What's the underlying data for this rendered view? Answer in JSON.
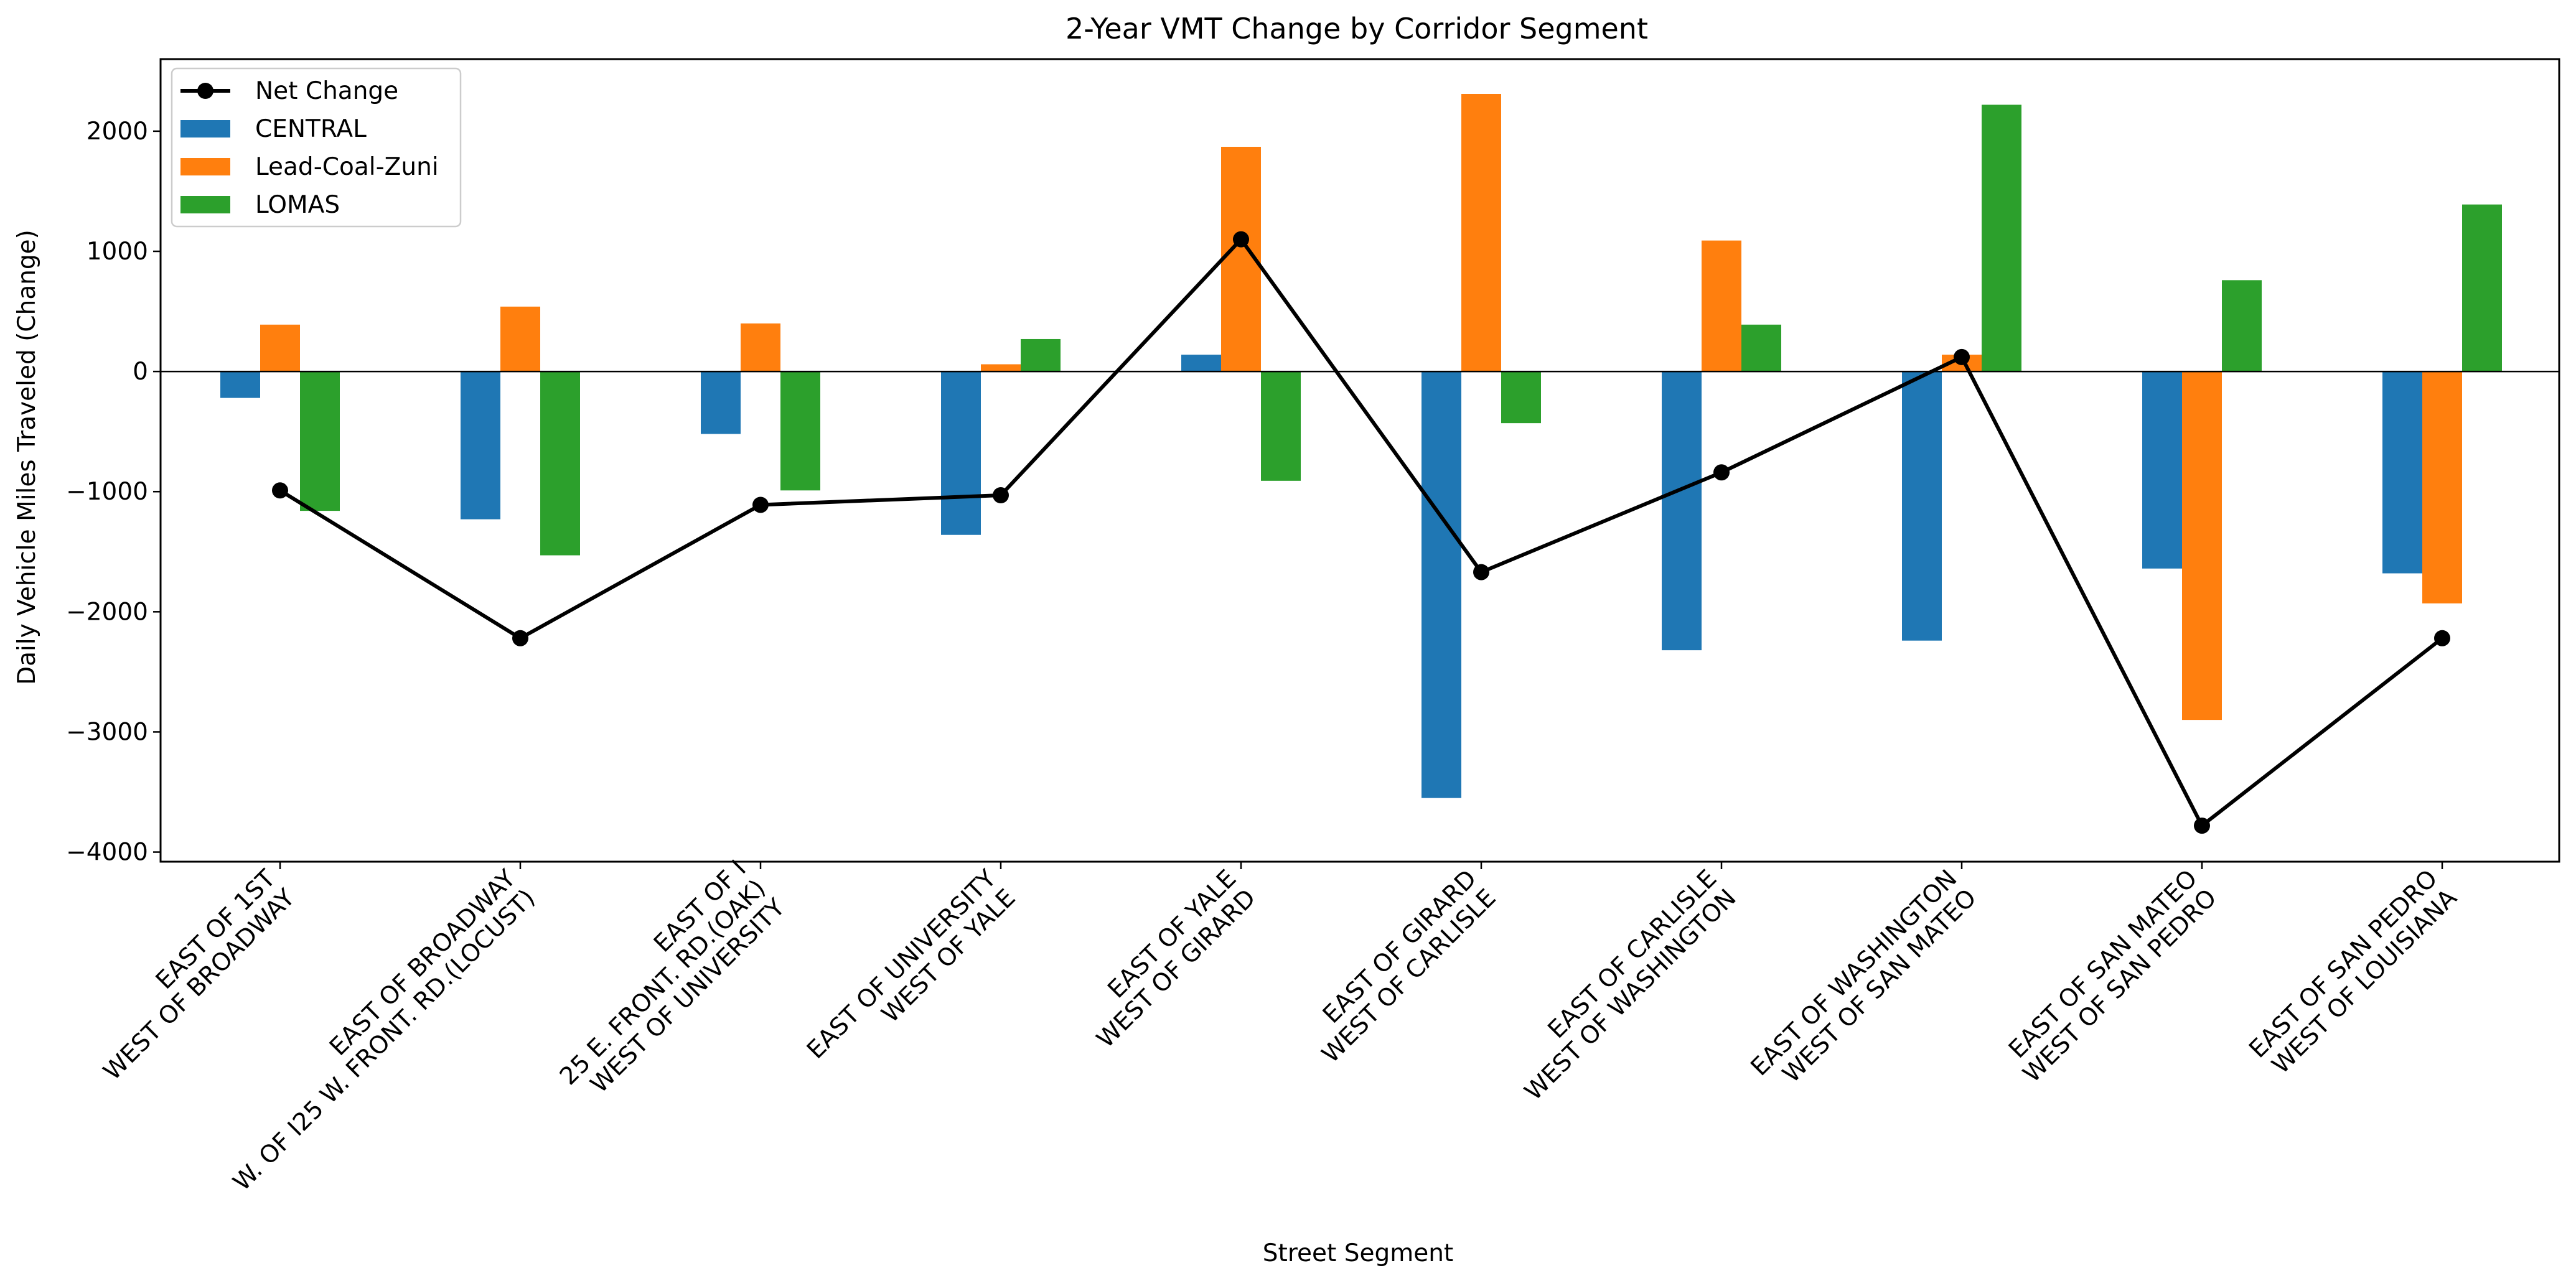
{
  "chart_data": {
    "type": "bar",
    "title": "2-Year VMT Change by Corridor Segment",
    "xlabel": "Street Segment",
    "ylabel": "Daily Vehicle Miles Traveled (Change)",
    "ylim": [
      -4080,
      2600
    ],
    "yticks": [
      -4000,
      -3000,
      -2000,
      -1000,
      0,
      1000,
      2000
    ],
    "ytick_labels": [
      "−4000",
      "−3000",
      "−2000",
      "−1000",
      "0",
      "1000",
      "2000"
    ],
    "legend_position": "top-left",
    "categories": [
      [
        "EAST OF 1ST",
        "WEST OF BROADWAY"
      ],
      [
        "EAST OF BROADWAY",
        "W. OF I25 W. FRONT. RD.(LOCUST)"
      ],
      [
        "EAST OF I",
        "25 E. FRONT. RD.(OAK)",
        "WEST OF UNIVERSITY"
      ],
      [
        "EAST OF UNIVERSITY",
        "WEST OF YALE"
      ],
      [
        "EAST OF YALE",
        "WEST OF GIRARD"
      ],
      [
        "EAST OF GIRARD",
        "WEST OF CARLISLE"
      ],
      [
        "EAST OF CARLISLE",
        "WEST OF WASHINGTON"
      ],
      [
        "EAST OF WASHINGTON",
        "WEST OF SAN MATEO"
      ],
      [
        "EAST OF SAN MATEO",
        "WEST OF SAN PEDRO"
      ],
      [
        "EAST OF SAN PEDRO",
        "WEST OF LOUISIANA"
      ]
    ],
    "series": [
      {
        "name": "CENTRAL",
        "color": "#1f77b4",
        "values": [
          -220,
          -1230,
          -520,
          -1360,
          140,
          -3550,
          -2320,
          -2240,
          -1640,
          -1680
        ]
      },
      {
        "name": "Lead-Coal-Zuni",
        "color": "#ff7f0e",
        "values": [
          390,
          540,
          400,
          60,
          1870,
          2310,
          1090,
          140,
          -2900,
          -1930
        ]
      },
      {
        "name": "LOMAS",
        "color": "#2ca02c",
        "values": [
          -1160,
          -1530,
          -990,
          270,
          -910,
          -430,
          390,
          2220,
          760,
          1390
        ]
      }
    ],
    "line": {
      "name": "Net Change",
      "color": "#000000",
      "values": [
        -990,
        -2220,
        -1110,
        -1030,
        1100,
        -1670,
        -840,
        120,
        -3780,
        -2220
      ]
    }
  }
}
